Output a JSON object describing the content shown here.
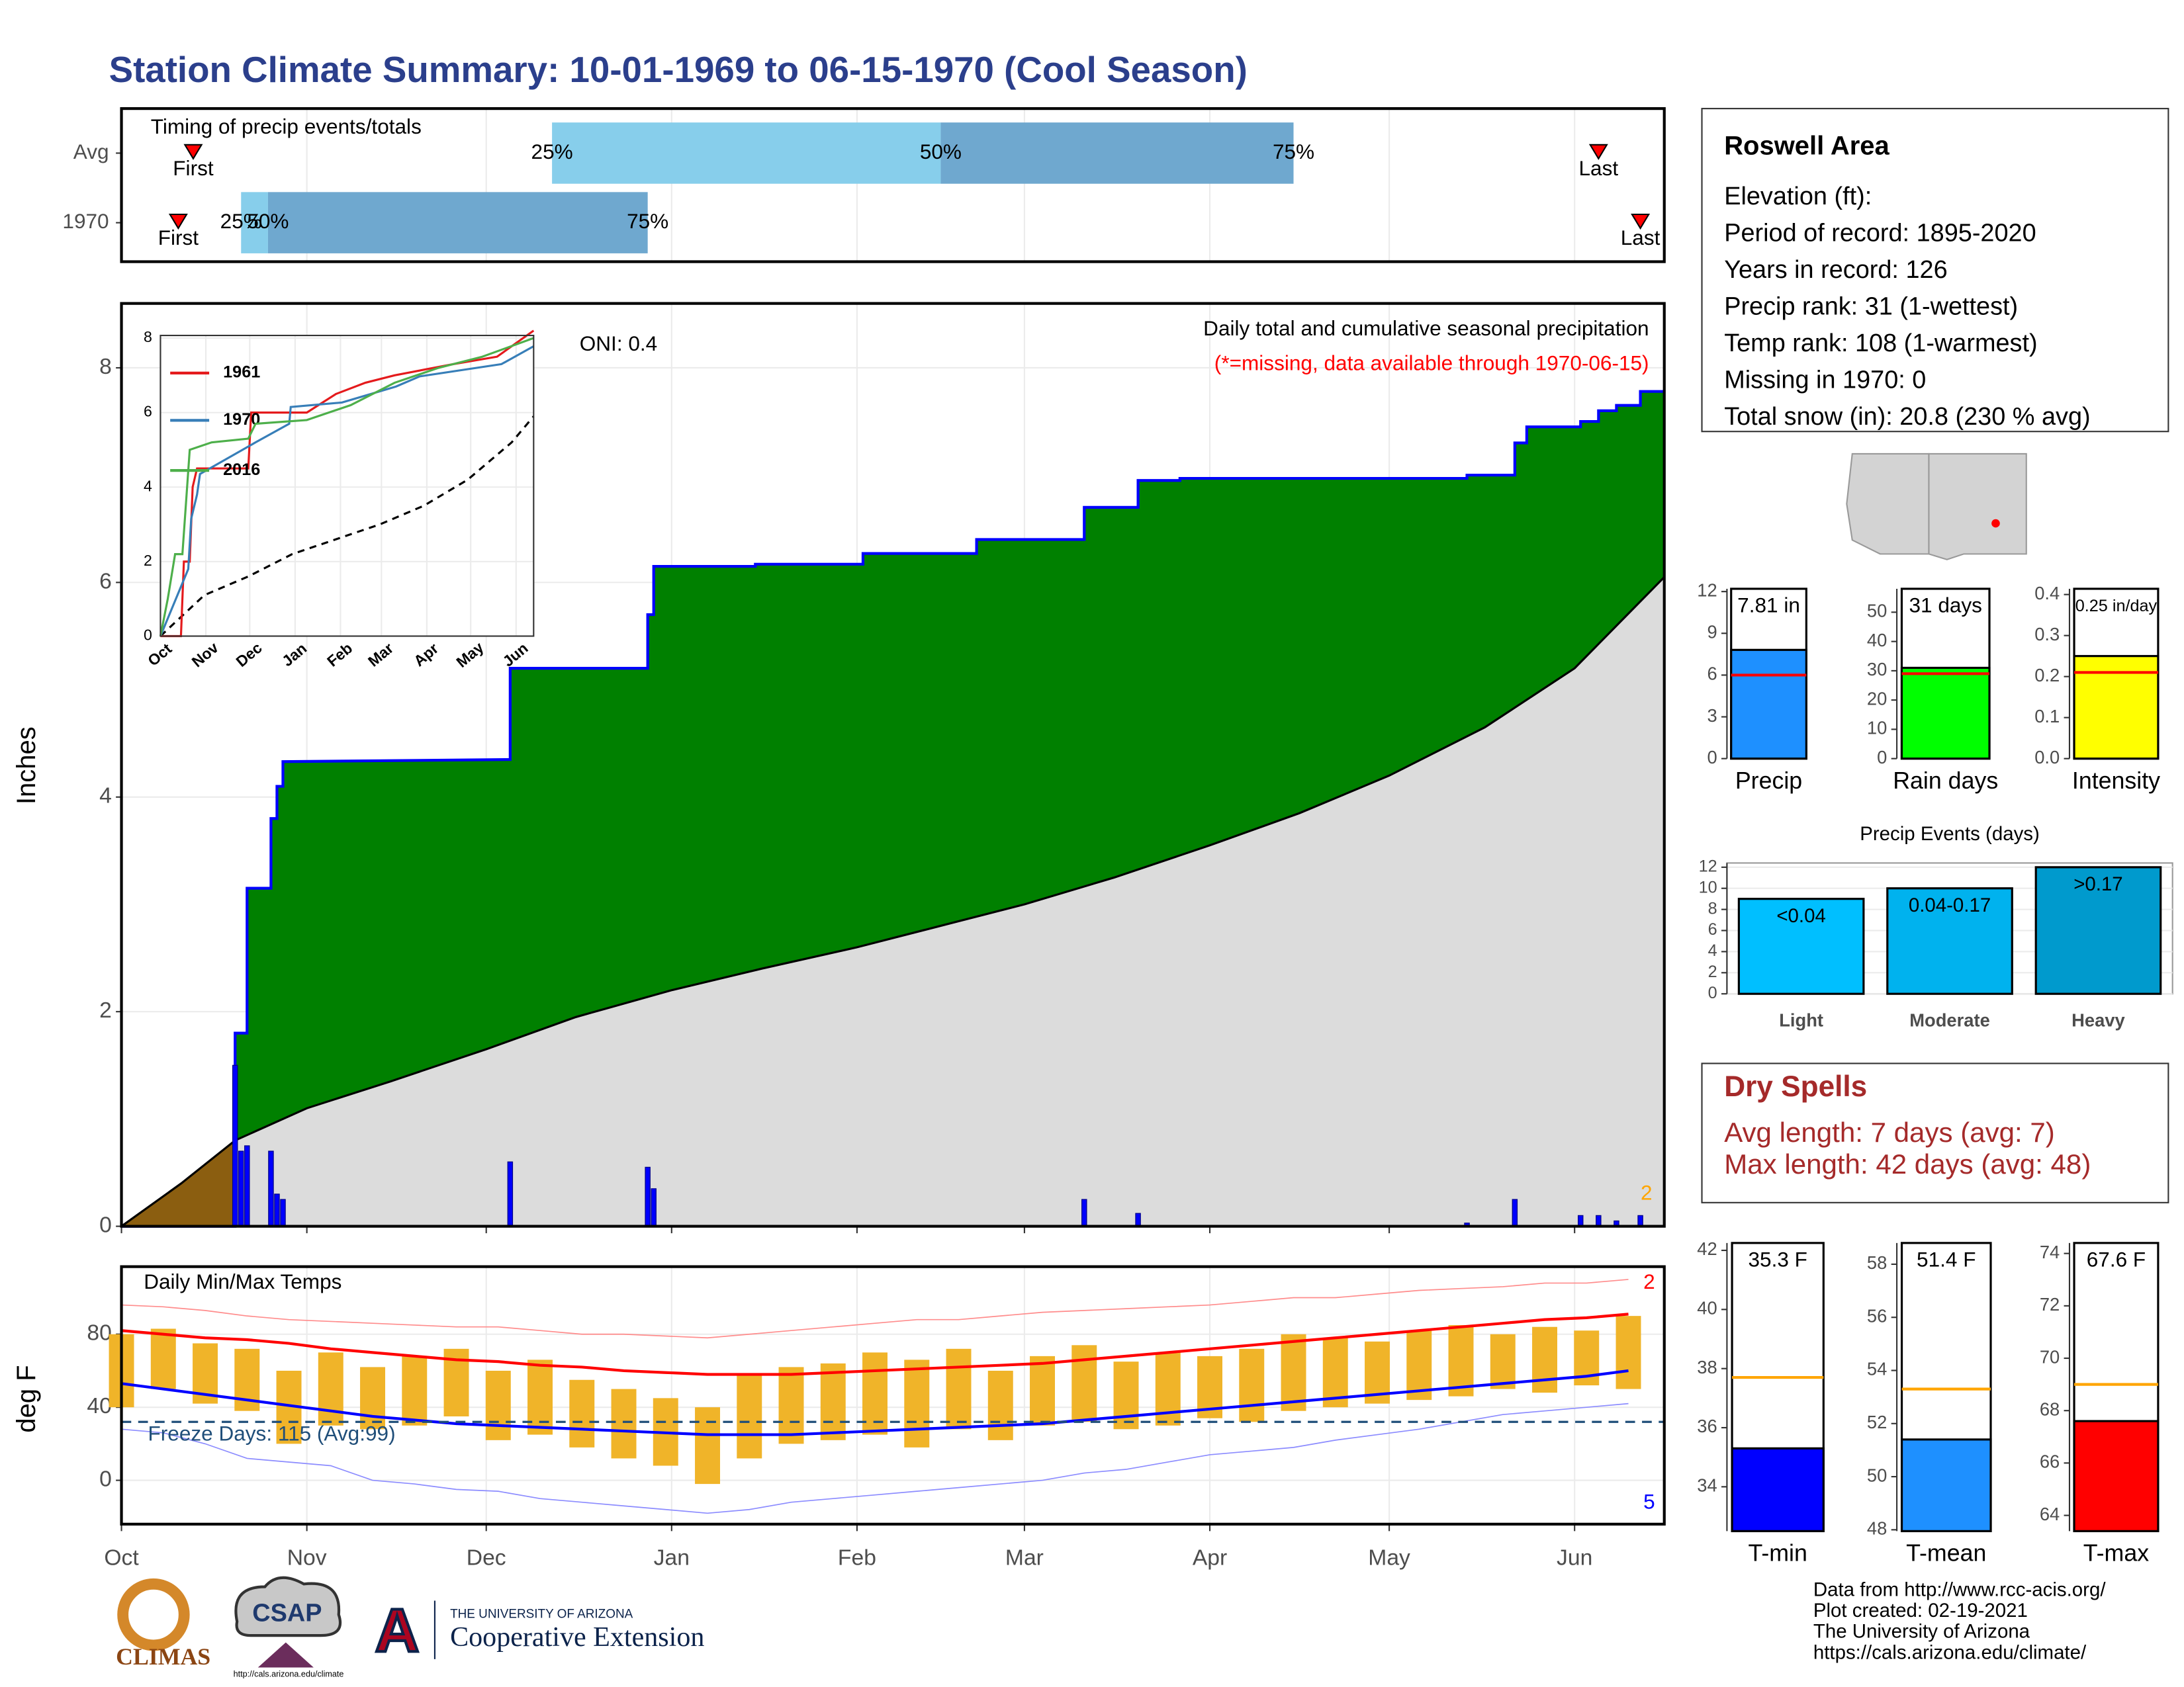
{
  "title": "Station Climate Summary: 10-01-1969 to 06-15-1970 (Cool Season)",
  "chart_data": [
    {
      "type": "timing",
      "title": "Timing of precip events/totals",
      "xlim": [
        0,
        258
      ],
      "quantile_labels": [
        "25%",
        "50%",
        "75%"
      ],
      "first_label": "First",
      "last_label": "Last",
      "light_color": "#87ceeb",
      "dark_color": "#6fa8cf",
      "marker_color": "#ff0000",
      "rows": [
        {
          "name": "Avg",
          "first": 12,
          "q25": 72,
          "q50": 137,
          "q75": 196,
          "last": 247
        },
        {
          "name": "1970",
          "first": 9.5,
          "q25": 20,
          "q50": 24.5,
          "q75": 88,
          "last": 254
        }
      ]
    },
    {
      "type": "cumulative",
      "title": "Daily total and cumulative seasonal precipitation",
      "subtitle": "(*=missing, data available through 1970-06-15)",
      "annotation": "ONI: 0.4",
      "ylabel": "Inches",
      "corner_label": "2",
      "xlim": [
        0,
        258
      ],
      "ylim": [
        0,
        8.6
      ],
      "yticks": [
        0,
        2,
        4,
        6,
        8
      ],
      "grid": true,
      "observed": {
        "color": "#008000",
        "line_color": "#0000ff",
        "x": [
          0,
          19,
          19,
          21,
          21,
          25,
          25,
          26,
          26,
          27,
          27,
          65,
          65,
          88,
          88,
          89,
          89,
          106,
          106,
          124,
          124,
          143,
          143,
          161,
          161,
          170,
          170,
          177,
          177,
          225,
          225,
          233,
          233,
          235,
          235,
          244,
          244,
          247,
          247,
          250,
          250,
          254,
          254,
          258
        ],
        "values": [
          0,
          0,
          1.8,
          1.8,
          3.15,
          3.15,
          3.8,
          3.8,
          4.1,
          4.1,
          4.33,
          4.35,
          5.2,
          5.2,
          5.7,
          5.7,
          6.15,
          6.15,
          6.17,
          6.17,
          6.27,
          6.27,
          6.4,
          6.4,
          6.7,
          6.7,
          6.95,
          6.95,
          6.97,
          6.97,
          7.0,
          7.0,
          7.3,
          7.3,
          7.45,
          7.45,
          7.5,
          7.5,
          7.6,
          7.6,
          7.65,
          7.65,
          7.78,
          7.78
        ]
      },
      "average": {
        "color": "#dcdcdc",
        "line_color": "#000000",
        "deficit_color": "#8b5e10",
        "x": [
          0,
          10,
          19,
          31,
          45,
          61,
          76,
          92,
          107,
          123,
          137,
          151,
          166,
          182,
          197,
          212,
          228,
          243,
          258
        ],
        "values": [
          0,
          0.4,
          0.8,
          1.1,
          1.35,
          1.65,
          1.95,
          2.2,
          2.4,
          2.6,
          2.8,
          3.0,
          3.25,
          3.55,
          3.85,
          4.2,
          4.65,
          5.2,
          6.05
        ]
      },
      "daily": {
        "color": "#0000ff",
        "x": [
          19,
          20,
          21,
          25,
          26,
          27,
          65,
          88,
          89,
          161,
          170,
          225,
          233,
          244,
          247,
          250,
          254
        ],
        "values": [
          1.5,
          0.7,
          0.75,
          0.7,
          0.3,
          0.25,
          0.6,
          0.55,
          0.35,
          0.25,
          0.12,
          0.03,
          0.25,
          0.1,
          0.1,
          0.05,
          0.1
        ]
      }
    },
    {
      "type": "line",
      "xlim": [
        0,
        255
      ],
      "ylim": [
        0,
        8.07
      ],
      "yticks": [
        0,
        2,
        4,
        6,
        8
      ],
      "xticks": [
        {
          "value": 0,
          "label": "Oct"
        },
        {
          "value": 31,
          "label": "Nov"
        },
        {
          "value": 61,
          "label": "Dec"
        },
        {
          "value": 92,
          "label": "Jan"
        },
        {
          "value": 123,
          "label": "Feb"
        },
        {
          "value": 151,
          "label": "Mar"
        },
        {
          "value": 182,
          "label": "Apr"
        },
        {
          "value": 212,
          "label": "May"
        },
        {
          "value": 243,
          "label": "Jun"
        }
      ],
      "series": [
        {
          "name": "1961",
          "color": "#e41a1c",
          "x": [
            0,
            14,
            16,
            20,
            22,
            25,
            60,
            62,
            100,
            120,
            140,
            160,
            200,
            230,
            255
          ],
          "values": [
            0,
            0,
            2,
            2,
            4,
            4.5,
            4.5,
            6,
            6,
            6.5,
            6.8,
            7,
            7.3,
            7.5,
            8.2
          ]
        },
        {
          "name": "1970",
          "color": "#377eb8",
          "x": [
            0,
            19,
            21,
            25,
            27,
            65,
            88,
            89,
            124,
            161,
            177,
            233,
            255
          ],
          "values": [
            0,
            1.8,
            3.15,
            3.8,
            4.35,
            5.2,
            5.7,
            6.15,
            6.27,
            6.7,
            6.97,
            7.3,
            7.78
          ]
        },
        {
          "name": "2016",
          "color": "#4daf4a",
          "x": [
            0,
            5,
            10,
            15,
            20,
            35,
            60,
            65,
            100,
            130,
            160,
            190,
            220,
            255
          ],
          "values": [
            0,
            1,
            2.2,
            2.2,
            5,
            5.2,
            5.3,
            5.7,
            5.8,
            6.2,
            6.8,
            7.2,
            7.5,
            8.0
          ]
        }
      ],
      "average": {
        "color": "#000000",
        "x": [
          0,
          30,
          60,
          90,
          120,
          150,
          180,
          210,
          240,
          255
        ],
        "values": [
          0,
          1.1,
          1.6,
          2.2,
          2.6,
          3.0,
          3.5,
          4.2,
          5.2,
          5.9
        ]
      }
    },
    {
      "type": "temperature",
      "title": "Daily Min/Max Temps",
      "ylabel": "deg F",
      "xlim": [
        0,
        258
      ],
      "ylim": [
        -24,
        117
      ],
      "yticks": [
        0,
        40,
        80
      ],
      "grid": true,
      "xticks": [
        {
          "value": 0,
          "label": "Oct"
        },
        {
          "value": 31,
          "label": "Nov"
        },
        {
          "value": 61,
          "label": "Dec"
        },
        {
          "value": 92,
          "label": "Jan"
        },
        {
          "value": 123,
          "label": "Feb"
        },
        {
          "value": 151,
          "label": "Mar"
        },
        {
          "value": 182,
          "label": "Apr"
        },
        {
          "value": 212,
          "label": "May"
        },
        {
          "value": 243,
          "label": "Jun"
        }
      ],
      "freeze": {
        "value": 32,
        "label": "Freeze Days: 115 (Avg:99)",
        "color": "#1f4e79"
      },
      "high_count_label": "2",
      "low_count_label": "5",
      "bar_color": "#f0b429",
      "avg_max_color": "#ff0000",
      "avg_min_color": "#0000ff",
      "record_high_color": "#ff8c8c",
      "record_low_color": "#8c8cff",
      "x": [
        0,
        7,
        14,
        21,
        28,
        35,
        42,
        49,
        56,
        63,
        70,
        77,
        84,
        91,
        98,
        105,
        112,
        119,
        126,
        133,
        140,
        147,
        154,
        161,
        168,
        175,
        182,
        189,
        196,
        203,
        210,
        217,
        224,
        231,
        238,
        245,
        252
      ],
      "tmax": [
        80,
        83,
        75,
        72,
        60,
        70,
        62,
        68,
        72,
        60,
        66,
        55,
        50,
        45,
        40,
        58,
        62,
        64,
        70,
        66,
        72,
        60,
        68,
        74,
        65,
        70,
        68,
        72,
        80,
        78,
        76,
        82,
        85,
        80,
        84,
        82,
        90
      ],
      "tmin": [
        40,
        50,
        42,
        38,
        20,
        30,
        28,
        30,
        35,
        22,
        25,
        18,
        12,
        8,
        -2,
        12,
        20,
        22,
        25,
        18,
        28,
        22,
        30,
        32,
        28,
        30,
        34,
        32,
        38,
        40,
        42,
        44,
        46,
        50,
        48,
        52,
        50
      ],
      "avg_max": [
        82,
        80,
        78,
        77,
        75,
        72,
        70,
        68,
        66,
        65,
        63,
        62,
        60,
        59,
        58,
        58,
        58,
        59,
        60,
        61,
        62,
        63,
        64,
        66,
        68,
        70,
        72,
        74,
        76,
        78,
        80,
        82,
        84,
        86,
        88,
        89,
        91
      ],
      "avg_min": [
        53,
        50,
        47,
        44,
        41,
        38,
        35,
        33,
        31,
        30,
        29,
        28,
        27,
        26,
        25,
        25,
        25,
        26,
        27,
        28,
        29,
        30,
        31,
        33,
        35,
        37,
        39,
        41,
        43,
        45,
        47,
        49,
        51,
        53,
        55,
        57,
        60
      ],
      "record_high": [
        96,
        95,
        93,
        90,
        88,
        87,
        86,
        85,
        84,
        84,
        82,
        80,
        80,
        79,
        78,
        80,
        82,
        84,
        86,
        88,
        88,
        90,
        92,
        93,
        94,
        95,
        96,
        98,
        100,
        100,
        102,
        104,
        105,
        106,
        108,
        108,
        110
      ],
      "record_low": [
        28,
        26,
        20,
        12,
        10,
        8,
        0,
        -2,
        -5,
        -6,
        -10,
        -12,
        -14,
        -16,
        -18,
        -16,
        -12,
        -10,
        -8,
        -6,
        -4,
        -2,
        0,
        4,
        6,
        10,
        14,
        16,
        18,
        22,
        25,
        28,
        32,
        36,
        38,
        40,
        42
      ]
    },
    {
      "type": "bar",
      "categories": [
        "Precip"
      ],
      "values": [
        7.81
      ],
      "value_labels": [
        "7.81 in"
      ],
      "average": 6.0,
      "average_color": "#ff0000",
      "colors": [
        "#1e90ff"
      ],
      "ylim": [
        0,
        12.2
      ],
      "yticks": [
        0,
        3,
        6,
        9,
        12
      ]
    },
    {
      "type": "bar",
      "categories": [
        "Rain days"
      ],
      "values": [
        31
      ],
      "value_labels": [
        "31 days"
      ],
      "average": 29,
      "average_color": "#ff0000",
      "colors": [
        "#00ff00"
      ],
      "ylim": [
        0,
        58
      ],
      "yticks": [
        0,
        10,
        20,
        30,
        40,
        50
      ]
    },
    {
      "type": "bar",
      "categories": [
        "Intensity"
      ],
      "values": [
        0.25
      ],
      "value_labels": [
        "0.25 in/day"
      ],
      "average": 0.21,
      "average_color": "#ff0000",
      "colors": [
        "#ffff00"
      ],
      "ylim": [
        0,
        0.414
      ],
      "yticks": [
        {
          "value": 0,
          "label": "0.0"
        },
        0.1,
        0.2,
        0.3,
        0.4
      ]
    },
    {
      "type": "bar",
      "title": "Precip Events (days)",
      "categories": [
        "Light",
        "Moderate",
        "Heavy"
      ],
      "values": [
        9,
        10,
        12
      ],
      "value_labels": [
        "<0.04",
        "0.04-0.17",
        ">0.17"
      ],
      "colors": [
        "#00bfff",
        "#00b2ee",
        "#009acd"
      ],
      "ylim": [
        0,
        12.4
      ],
      "yticks": [
        0,
        2,
        4,
        6,
        8,
        10,
        12
      ],
      "grid": true
    },
    {
      "type": "bar",
      "categories": [
        "T-min"
      ],
      "values": [
        35.3
      ],
      "value_labels": [
        "35.3 F"
      ],
      "average": 37.7,
      "average_color": "#ffa500",
      "colors": [
        "#0000ff"
      ],
      "ylim": [
        32.5,
        42.25
      ],
      "yticks": [
        34,
        36,
        38,
        40,
        42
      ]
    },
    {
      "type": "bar",
      "categories": [
        "T-mean"
      ],
      "values": [
        51.4
      ],
      "value_labels": [
        "51.4 F"
      ],
      "average": 53.3,
      "average_color": "#ffa500",
      "colors": [
        "#1e90ff"
      ],
      "ylim": [
        47.95,
        58.8
      ],
      "yticks": [
        48,
        50,
        52,
        54,
        56,
        58
      ]
    },
    {
      "type": "bar",
      "categories": [
        "T-max"
      ],
      "values": [
        67.6
      ],
      "value_labels": [
        "67.6 F"
      ],
      "average": 69,
      "average_color": "#ffa500",
      "colors": [
        "#ff0000"
      ],
      "ylim": [
        63.4,
        74.4
      ],
      "yticks": [
        64,
        66,
        68,
        70,
        72,
        74
      ]
    }
  ],
  "info": {
    "title": "Roswell Area",
    "lines": [
      "Elevation (ft):",
      "Period of record: 1895-2020",
      "Years in record: 126",
      "Precip rank: 31 (1-wettest)",
      "Temp rank: 108 (1-warmest)",
      "Missing in 1970: 0",
      "Total snow (in): 20.8 (230 % avg)"
    ]
  },
  "dry_spells": {
    "title": "Dry Spells",
    "lines": [
      "Avg length: 7 days (avg: 7)",
      "Max length: 42 days (avg: 48)"
    ]
  },
  "footer": [
    "Data from http://www.rcc-acis.org/",
    "Plot created: 02-19-2021",
    "The University of Arizona",
    "https://cals.arizona.edu/climate/"
  ],
  "logos": {
    "climas": "CLIMAS",
    "csap": "CSAP",
    "csap_url": "http://cals.arizona.edu/climate",
    "ua": "THE UNIVERSITY OF ARIZONA",
    "extension": "Cooperative Extension"
  }
}
